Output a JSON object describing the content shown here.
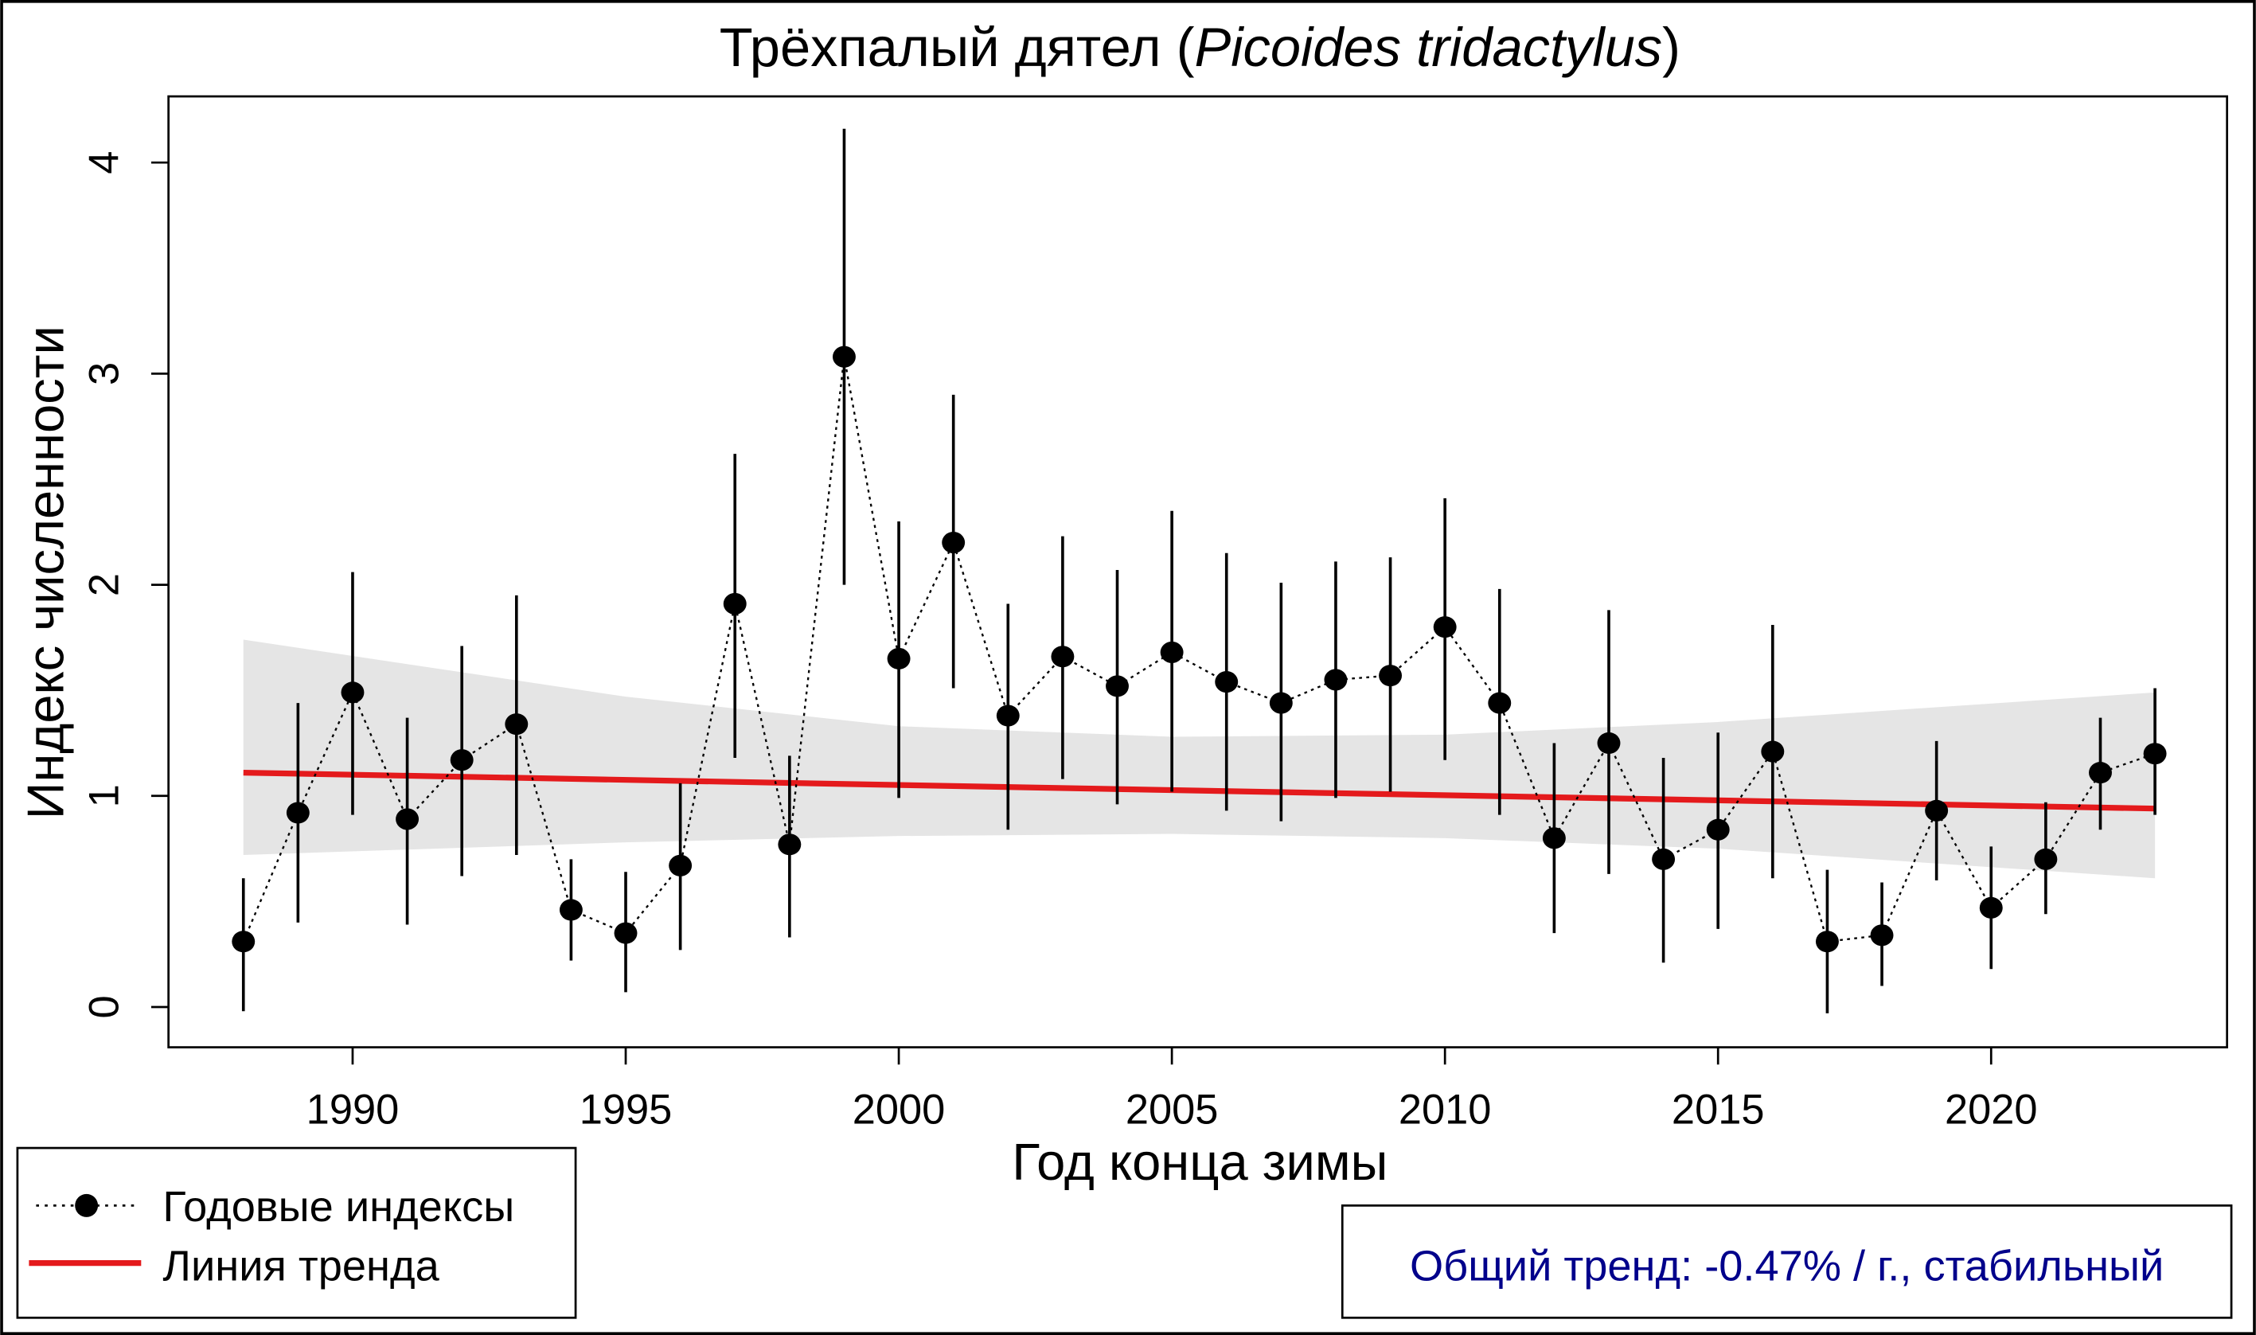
{
  "chart_data": {
    "type": "line",
    "title": "Трёхпалый дятел (",
    "title_italic": "Picoides tridactylus",
    "title_close": ")",
    "xlabel": "Год конца зимы",
    "ylabel": "Индекс численности",
    "xlim": [
      1986,
      2025.7
    ],
    "ylim": [
      -0.18,
      4.45
    ],
    "x_ticks": [
      1990,
      1995,
      2000,
      2005,
      2010,
      2015,
      2020
    ],
    "y_ticks": [
      0,
      1,
      2,
      3,
      4
    ],
    "grid": false,
    "series": [
      {
        "name": "Годовые индексы",
        "style": "dotted line with filled points and vertical CI bars",
        "color": "#000000",
        "x": [
          1988,
          1989,
          1990,
          1991,
          1992,
          1993,
          1994,
          1995,
          1996,
          1997,
          1998,
          1999,
          2000,
          2001,
          2002,
          2003,
          2004,
          2005,
          2006,
          2007,
          2008,
          2009,
          2010,
          2011,
          2012,
          2013,
          2014,
          2015,
          2016,
          2017,
          2018,
          2019,
          2020,
          2021,
          2022,
          2023
        ],
        "y": [
          0.31,
          0.92,
          1.49,
          0.89,
          1.17,
          1.34,
          0.46,
          0.35,
          0.67,
          1.91,
          0.77,
          3.08,
          1.65,
          2.2,
          1.38,
          1.66,
          1.52,
          1.68,
          1.54,
          1.44,
          1.55,
          1.57,
          1.8,
          1.44,
          0.8,
          1.25,
          0.7,
          0.84,
          1.21,
          0.31,
          0.34,
          0.93,
          0.47,
          0.7,
          1.11,
          1.2
        ],
        "ci_upper": [
          0.61,
          1.44,
          2.06,
          1.37,
          1.71,
          1.95,
          0.7,
          0.64,
          1.06,
          2.62,
          1.19,
          4.16,
          2.3,
          2.9,
          1.91,
          2.23,
          2.07,
          2.35,
          2.15,
          2.01,
          2.11,
          2.13,
          2.41,
          1.98,
          1.25,
          1.88,
          1.18,
          1.3,
          1.81,
          0.65,
          0.59,
          1.26,
          0.76,
          0.97,
          1.37,
          1.51
        ],
        "ci_lower": [
          -0.02,
          0.4,
          0.91,
          0.39,
          0.62,
          0.72,
          0.22,
          0.07,
          0.27,
          1.18,
          0.33,
          2.0,
          0.99,
          1.51,
          0.84,
          1.08,
          0.96,
          1.02,
          0.93,
          0.88,
          0.99,
          1.02,
          1.17,
          0.91,
          0.35,
          0.63,
          0.21,
          0.37,
          0.61,
          -0.03,
          0.1,
          0.6,
          0.18,
          0.44,
          0.84,
          0.91
        ]
      },
      {
        "name": "Линия тренда",
        "color": "#e41a1c",
        "x": [
          1988,
          2023
        ],
        "y": [
          1.11,
          0.94
        ]
      }
    ],
    "trend_band": {
      "color": "#e5e5e5",
      "x": [
        1988,
        1995,
        2000,
        2005,
        2010,
        2015,
        2023
      ],
      "upper": [
        1.74,
        1.47,
        1.33,
        1.28,
        1.29,
        1.35,
        1.49
      ],
      "lower": [
        0.72,
        0.78,
        0.81,
        0.82,
        0.8,
        0.75,
        0.61
      ]
    },
    "legend": {
      "placement": "bottom-left",
      "entries": [
        "Годовые индексы",
        "Линия тренда"
      ]
    },
    "annotation": {
      "text": "Общий тренд: -0.47% / г., стабильный",
      "color": "#00008b",
      "placement": "bottom-right"
    }
  }
}
